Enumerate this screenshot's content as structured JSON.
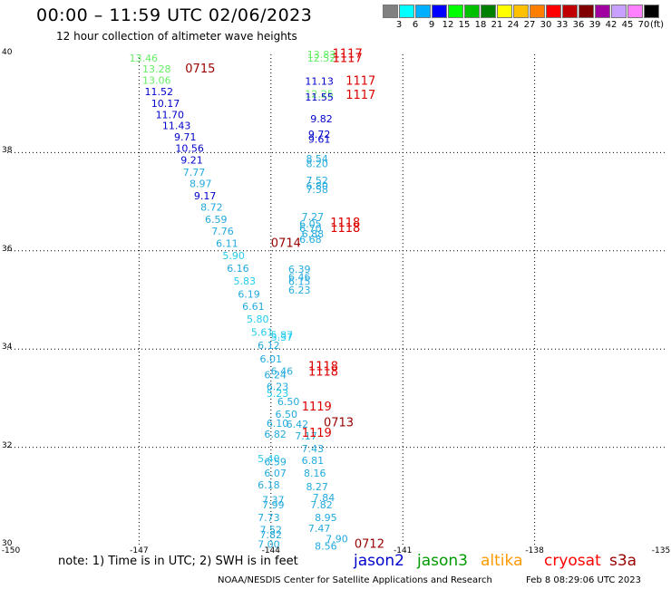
{
  "header": {
    "title": "00:00 – 11:59 UTC 02/06/2023",
    "subtitle": "12 hour collection of altimeter wave heights"
  },
  "legend": {
    "colors": [
      "#808080",
      "#00ffff",
      "#00b0ff",
      "#0000ff",
      "#00ff00",
      "#00c000",
      "#008000",
      "#ffff00",
      "#ffc000",
      "#ff8000",
      "#ff0000",
      "#c00000",
      "#800000",
      "#a000a0",
      "#c8a0ff",
      "#ff80ff",
      "#000000"
    ],
    "ticks": [
      "3",
      "6",
      "9",
      "12",
      "15",
      "18",
      "21",
      "24",
      "27",
      "30",
      "33",
      "36",
      "39",
      "42",
      "45",
      "70"
    ],
    "unit": "(ft)"
  },
  "axes": {
    "y_ticks": [
      "40",
      "38",
      "36",
      "34",
      "32",
      "30"
    ],
    "x_ticks": [
      "-150",
      "-147",
      "-144",
      "-141",
      "-138",
      "-135"
    ]
  },
  "chart_data": {
    "type": "scatter",
    "title": "12 hour collection of altimeter wave heights",
    "xlim": [
      -150,
      -135
    ],
    "ylim": [
      30,
      40
    ],
    "grid": true,
    "points": [
      {
        "lon": -146.9,
        "lat": 39.85,
        "v": "13.46",
        "c": "#66ee66"
      },
      {
        "lon": -146.6,
        "lat": 39.63,
        "v": "13.28",
        "c": "#66ee66"
      },
      {
        "lon": -146.6,
        "lat": 39.4,
        "v": "13.06",
        "c": "#66ee66"
      },
      {
        "lon": -146.55,
        "lat": 39.17,
        "v": "11.52",
        "c": "#0000cc"
      },
      {
        "lon": -146.4,
        "lat": 38.93,
        "v": "10.17",
        "c": "#0000cc"
      },
      {
        "lon": -146.3,
        "lat": 38.7,
        "v": "11.70",
        "c": "#0000cc"
      },
      {
        "lon": -146.15,
        "lat": 38.48,
        "v": "11.43",
        "c": "#0000cc"
      },
      {
        "lon": -145.95,
        "lat": 38.25,
        "v": "9.71",
        "c": "#0000cc"
      },
      {
        "lon": -145.85,
        "lat": 38.02,
        "v": "10.56",
        "c": "#0000cc"
      },
      {
        "lon": -145.8,
        "lat": 37.78,
        "v": "9.21",
        "c": "#0000cc"
      },
      {
        "lon": -145.75,
        "lat": 37.53,
        "v": "7.77",
        "c": "#22aadd"
      },
      {
        "lon": -145.6,
        "lat": 37.3,
        "v": "8.97",
        "c": "#22aadd"
      },
      {
        "lon": -145.5,
        "lat": 37.05,
        "v": "9.17",
        "c": "#0000cc"
      },
      {
        "lon": -145.35,
        "lat": 36.82,
        "v": "8.72",
        "c": "#22aadd"
      },
      {
        "lon": -145.25,
        "lat": 36.57,
        "v": "6.59",
        "c": "#22aadd"
      },
      {
        "lon": -145.1,
        "lat": 36.33,
        "v": "7.76",
        "c": "#22aadd"
      },
      {
        "lon": -145.0,
        "lat": 36.08,
        "v": "6.11",
        "c": "#22aadd"
      },
      {
        "lon": -144.85,
        "lat": 35.83,
        "v": "5.90",
        "c": "#22ccee"
      },
      {
        "lon": -144.75,
        "lat": 35.57,
        "v": "6.16",
        "c": "#22aadd"
      },
      {
        "lon": -144.6,
        "lat": 35.31,
        "v": "5.83",
        "c": "#22ccee"
      },
      {
        "lon": -144.5,
        "lat": 35.05,
        "v": "6.19",
        "c": "#22aadd"
      },
      {
        "lon": -144.4,
        "lat": 34.8,
        "v": "6.61",
        "c": "#22aadd"
      },
      {
        "lon": -144.3,
        "lat": 34.54,
        "v": "5.80",
        "c": "#22ccee"
      },
      {
        "lon": -144.2,
        "lat": 34.27,
        "v": "5.61",
        "c": "#22ccee"
      },
      {
        "lon": -144.05,
        "lat": 34.0,
        "v": "6.12",
        "c": "#22aadd"
      },
      {
        "lon": -144.0,
        "lat": 33.73,
        "v": "6.01",
        "c": "#22aadd"
      },
      {
        "lon": -143.75,
        "lat": 34.22,
        "v": "5.87",
        "c": "#22ccee"
      },
      {
        "lon": -143.75,
        "lat": 34.17,
        "v": "5.37",
        "c": "#22ccee"
      },
      {
        "lon": -143.75,
        "lat": 33.48,
        "v": "6.46",
        "c": "#22aadd"
      },
      {
        "lon": -143.9,
        "lat": 33.4,
        "v": "6.24",
        "c": "#22aadd"
      },
      {
        "lon": -143.85,
        "lat": 33.16,
        "v": "6.23",
        "c": "#22aadd"
      },
      {
        "lon": -143.85,
        "lat": 33.03,
        "v": "5.23",
        "c": "#22ccee"
      },
      {
        "lon": -143.6,
        "lat": 32.86,
        "v": "6.50",
        "c": "#22aadd"
      },
      {
        "lon": -143.65,
        "lat": 32.6,
        "v": "6.50",
        "c": "#22aadd"
      },
      {
        "lon": -143.85,
        "lat": 32.42,
        "v": "6.10",
        "c": "#22aadd"
      },
      {
        "lon": -143.4,
        "lat": 32.4,
        "v": "6.42",
        "c": "#22aadd"
      },
      {
        "lon": -143.9,
        "lat": 32.2,
        "v": "6.82",
        "c": "#22aadd"
      },
      {
        "lon": -143.2,
        "lat": 32.16,
        "v": "7.17",
        "c": "#22aadd"
      },
      {
        "lon": -143.05,
        "lat": 31.9,
        "v": "7.43",
        "c": "#22aadd"
      },
      {
        "lon": -144.05,
        "lat": 31.7,
        "v": "5.40",
        "c": "#22ccee"
      },
      {
        "lon": -143.05,
        "lat": 31.66,
        "v": "6.81",
        "c": "#22aadd"
      },
      {
        "lon": -143.9,
        "lat": 31.63,
        "v": "6.59",
        "c": "#22aadd"
      },
      {
        "lon": -143.9,
        "lat": 31.4,
        "v": "6.07",
        "c": "#22aadd"
      },
      {
        "lon": -143.0,
        "lat": 31.4,
        "v": "8.16",
        "c": "#22aadd"
      },
      {
        "lon": -144.05,
        "lat": 31.16,
        "v": "6.18",
        "c": "#22aadd"
      },
      {
        "lon": -142.95,
        "lat": 31.13,
        "v": "8.27",
        "c": "#22aadd"
      },
      {
        "lon": -143.95,
        "lat": 30.86,
        "v": "7.37",
        "c": "#22aadd"
      },
      {
        "lon": -142.8,
        "lat": 30.9,
        "v": "7.84",
        "c": "#22aadd"
      },
      {
        "lon": -143.95,
        "lat": 30.76,
        "v": "7.99",
        "c": "#22aadd"
      },
      {
        "lon": -142.85,
        "lat": 30.76,
        "v": "7.82",
        "c": "#22aadd"
      },
      {
        "lon": -144.05,
        "lat": 30.5,
        "v": "7.73",
        "c": "#22aadd"
      },
      {
        "lon": -142.75,
        "lat": 30.5,
        "v": "8.95",
        "c": "#22aadd"
      },
      {
        "lon": -144.0,
        "lat": 30.25,
        "v": "7.52",
        "c": "#22aadd"
      },
      {
        "lon": -142.9,
        "lat": 30.28,
        "v": "7.47",
        "c": "#22aadd"
      },
      {
        "lon": -144.0,
        "lat": 30.15,
        "v": "7.82",
        "c": "#22aadd"
      },
      {
        "lon": -142.5,
        "lat": 30.06,
        "v": "7.90",
        "c": "#22aadd"
      },
      {
        "lon": -144.05,
        "lat": 29.95,
        "v": "7.00",
        "c": "#22aadd"
      },
      {
        "lon": -142.75,
        "lat": 29.92,
        "v": "8.56",
        "c": "#22aadd"
      },
      {
        "lon": -142.85,
        "lat": 39.93,
        "v": "13.83",
        "c": "#66ee66"
      },
      {
        "lon": -142.85,
        "lat": 39.85,
        "v": "12.52",
        "c": "#66ee66"
      },
      {
        "lon": -142.9,
        "lat": 39.38,
        "v": "11.13",
        "c": "#0000cc"
      },
      {
        "lon": -142.9,
        "lat": 39.12,
        "v": "12.25",
        "c": "#66ee66"
      },
      {
        "lon": -142.9,
        "lat": 39.06,
        "v": "11.55",
        "c": "#0000cc"
      },
      {
        "lon": -142.85,
        "lat": 38.62,
        "v": "9.82",
        "c": "#0000cc"
      },
      {
        "lon": -142.9,
        "lat": 38.3,
        "v": "9.72",
        "c": "#0000cc"
      },
      {
        "lon": -142.9,
        "lat": 38.2,
        "v": "9.61",
        "c": "#0000cc"
      },
      {
        "lon": -142.95,
        "lat": 37.8,
        "v": "8.54",
        "c": "#22aadd"
      },
      {
        "lon": -142.95,
        "lat": 37.7,
        "v": "8.20",
        "c": "#22aadd"
      },
      {
        "lon": -142.95,
        "lat": 37.36,
        "v": "7.52",
        "c": "#22aadd"
      },
      {
        "lon": -142.95,
        "lat": 37.25,
        "v": "6.80",
        "c": "#22aadd"
      },
      {
        "lon": -142.95,
        "lat": 37.18,
        "v": "7.58",
        "c": "#22aadd"
      },
      {
        "lon": -143.05,
        "lat": 36.62,
        "v": "7.27",
        "c": "#22aadd"
      },
      {
        "lon": -143.1,
        "lat": 36.48,
        "v": "6.05",
        "c": "#22aadd"
      },
      {
        "lon": -143.1,
        "lat": 36.38,
        "v": "6.70",
        "c": "#22aadd"
      },
      {
        "lon": -143.05,
        "lat": 36.27,
        "v": "6.88",
        "c": "#22aadd"
      },
      {
        "lon": -143.1,
        "lat": 36.16,
        "v": "6.68",
        "c": "#22aadd"
      },
      {
        "lon": -143.35,
        "lat": 35.55,
        "v": "6.39",
        "c": "#22aadd"
      },
      {
        "lon": -143.35,
        "lat": 35.4,
        "v": "6.46",
        "c": "#22aadd"
      },
      {
        "lon": -143.35,
        "lat": 35.3,
        "v": "6.15",
        "c": "#22aadd"
      },
      {
        "lon": -143.35,
        "lat": 35.13,
        "v": "6.23",
        "c": "#22aadd"
      }
    ],
    "stamps": [
      {
        "lon": -145.95,
        "lat": 39.63,
        "t": "0715",
        "c": "#990000"
      },
      {
        "lon": -142.6,
        "lat": 39.94,
        "t": "1117",
        "c": "#dd0000"
      },
      {
        "lon": -142.6,
        "lat": 39.84,
        "t": "1117",
        "c": "#dd0000"
      },
      {
        "lon": -142.3,
        "lat": 39.38,
        "t": "1117",
        "c": "#dd0000"
      },
      {
        "lon": -142.3,
        "lat": 39.1,
        "t": "1117",
        "c": "#dd0000"
      },
      {
        "lon": -142.65,
        "lat": 36.49,
        "t": "1118",
        "c": "#dd0000"
      },
      {
        "lon": -142.65,
        "lat": 36.38,
        "t": "1118",
        "c": "#dd0000"
      },
      {
        "lon": -144.0,
        "lat": 36.08,
        "t": "0714",
        "c": "#990000"
      },
      {
        "lon": -143.15,
        "lat": 33.57,
        "t": "1118",
        "c": "#dd0000"
      },
      {
        "lon": -143.15,
        "lat": 33.46,
        "t": "1118",
        "c": "#dd0000"
      },
      {
        "lon": -143.3,
        "lat": 32.75,
        "t": "1119",
        "c": "#dd0000"
      },
      {
        "lon": -142.8,
        "lat": 32.43,
        "t": "0713",
        "c": "#990000"
      },
      {
        "lon": -143.3,
        "lat": 32.21,
        "t": "1119",
        "c": "#dd0000"
      },
      {
        "lon": -142.1,
        "lat": 29.95,
        "t": "0712",
        "c": "#990000"
      }
    ]
  },
  "footer": {
    "note": "note: 1) Time is in UTC; 2) SWH is in feet",
    "satellites": [
      {
        "name": "jason2",
        "color": "#0000cc"
      },
      {
        "name": "jason3",
        "color": "#009900"
      },
      {
        "name": "altika",
        "color": "#ff9900"
      },
      {
        "name": "cryosat",
        "color": "#ff0000"
      },
      {
        "name": "s3a",
        "color": "#990000"
      }
    ],
    "credit": "NOAA/NESDIS Center for Satellite Applications and Research",
    "timestamp": "Feb  8 08:29:06 UTC 2023"
  }
}
